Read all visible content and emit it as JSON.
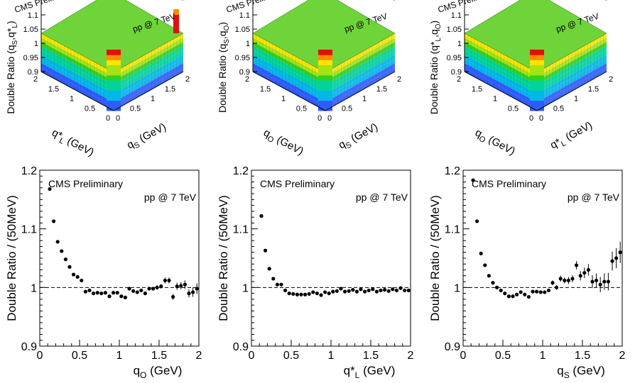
{
  "top_panels": [
    {
      "type": "lego3d",
      "z_label_main": "Double Ratio (q",
      "z_label_sub1": "S",
      "z_label_mid": ",q*",
      "z_label_sub2": "L",
      "z_label_end": ")",
      "x_axis_main": "q*",
      "x_axis_sub": "L",
      "x_axis_unit": "(GeV)",
      "y_axis_main": "q",
      "y_axis_sub": "S",
      "y_axis_unit": "(GeV)",
      "cms_label": "CMS Preliminary",
      "energy_label": "pp @ 7 TeV",
      "z_ticks": [
        "0.9",
        "0.95",
        "1",
        "1.05",
        "1.1"
      ],
      "left_ticks": [
        "2",
        "1.5",
        "1",
        "0.5",
        "0"
      ],
      "right_ticks": [
        "0",
        "0.5",
        "1",
        "1.5",
        "2"
      ],
      "spike": "corner"
    },
    {
      "type": "lego3d",
      "z_label_main": "Double Ratio (q",
      "z_label_sub1": "S",
      "z_label_mid": ",q",
      "z_label_sub2": "O",
      "z_label_end": ")",
      "x_axis_main": "q",
      "x_axis_sub": "O",
      "x_axis_unit": "(GeV)",
      "y_axis_main": "q",
      "y_axis_sub": "S",
      "y_axis_unit": "(GeV)",
      "cms_label": "CMS Preliminary",
      "energy_label": "pp @ 7 TeV",
      "z_ticks": [
        "0.9",
        "0.95",
        "1",
        "1.05",
        "1.1"
      ],
      "left_ticks": [
        "2",
        "1.5",
        "1",
        "0.5",
        "0"
      ],
      "right_ticks": [
        "0",
        "0.5",
        "1",
        "1.5",
        "2"
      ],
      "spike": "back"
    },
    {
      "type": "lego3d",
      "z_label_main": "Double Ratio (q*",
      "z_label_sub1": "L",
      "z_label_mid": ",q",
      "z_label_sub2": "O",
      "z_label_end": ")",
      "x_axis_main": "q",
      "x_axis_sub": "O",
      "x_axis_unit": "(GeV)",
      "y_axis_main": "q*",
      "y_axis_sub": "L",
      "y_axis_unit": "(GeV)",
      "cms_label": "CMS Preliminary",
      "energy_label": "pp @ 7 TeV",
      "z_ticks": [
        "0.9",
        "0.95",
        "1",
        "1.05",
        "1.1"
      ],
      "left_ticks": [
        "2",
        "1.5",
        "1",
        "0.5",
        "0"
      ],
      "right_ticks": [
        "0",
        "0.5",
        "1",
        "1.5",
        "2"
      ],
      "spike": "none"
    }
  ],
  "chart_data": [
    {
      "type": "scatter",
      "ylabel": "Double Ratio / (50MeV)",
      "xlabel_main": "q",
      "xlabel_sub": "O",
      "xlabel_unit": "(GeV)",
      "xlim": [
        0,
        2
      ],
      "ylim": [
        0.9,
        1.2
      ],
      "x_ticks": [
        "0",
        "0.5",
        "1",
        "1.5",
        "2"
      ],
      "y_ticks": [
        "0.9",
        "1",
        "1.1",
        "1.2"
      ],
      "reference_line": 1.0,
      "cms_label": "CMS Preliminary",
      "energy_label": "pp @ 7 TeV",
      "x": [
        0.125,
        0.175,
        0.225,
        0.275,
        0.325,
        0.375,
        0.425,
        0.475,
        0.525,
        0.575,
        0.625,
        0.675,
        0.725,
        0.775,
        0.825,
        0.875,
        0.925,
        0.975,
        1.025,
        1.075,
        1.125,
        1.175,
        1.225,
        1.275,
        1.325,
        1.375,
        1.425,
        1.475,
        1.525,
        1.575,
        1.625,
        1.675,
        1.725,
        1.775,
        1.825,
        1.875,
        1.925,
        1.975
      ],
      "y": [
        1.168,
        1.113,
        1.078,
        1.062,
        1.048,
        1.035,
        1.022,
        1.018,
        1.012,
        0.993,
        0.995,
        0.99,
        0.991,
        0.99,
        0.991,
        0.985,
        0.991,
        0.991,
        0.985,
        0.983,
        0.998,
        0.994,
        0.992,
        0.995,
        0.99,
        0.998,
        0.998,
        1.0,
        1.002,
        1.012,
        1.012,
        0.984,
        1.002,
        1.003,
        1.005,
        0.99,
        0.992,
        0.998
      ],
      "yerr": [
        0.002,
        0.002,
        0.002,
        0.002,
        0.002,
        0.002,
        0.002,
        0.002,
        0.002,
        0.002,
        0.002,
        0.002,
        0.002,
        0.002,
        0.002,
        0.002,
        0.002,
        0.002,
        0.002,
        0.002,
        0.002,
        0.002,
        0.002,
        0.002,
        0.003,
        0.003,
        0.003,
        0.004,
        0.004,
        0.005,
        0.005,
        0.005,
        0.006,
        0.006,
        0.007,
        0.007,
        0.008,
        0.009
      ]
    },
    {
      "type": "scatter",
      "ylabel": "Double Ratio / (50MeV)",
      "xlabel_main": "q*",
      "xlabel_sub": "L",
      "xlabel_unit": "(GeV)",
      "xlim": [
        0,
        2
      ],
      "ylim": [
        0.9,
        1.2
      ],
      "x_ticks": [
        "0",
        "0.5",
        "1",
        "1.5",
        "2"
      ],
      "y_ticks": [
        "0.9",
        "1",
        "1.1",
        "1.2"
      ],
      "reference_line": 1.0,
      "cms_label": "CMS Preliminary",
      "energy_label": "pp @ 7 TeV",
      "x": [
        0.125,
        0.175,
        0.225,
        0.275,
        0.325,
        0.375,
        0.425,
        0.475,
        0.525,
        0.575,
        0.625,
        0.675,
        0.725,
        0.775,
        0.825,
        0.875,
        0.925,
        0.975,
        1.025,
        1.075,
        1.125,
        1.175,
        1.225,
        1.275,
        1.325,
        1.375,
        1.425,
        1.475,
        1.525,
        1.575,
        1.625,
        1.675,
        1.725,
        1.775,
        1.825,
        1.875,
        1.925,
        1.975
      ],
      "y": [
        1.122,
        1.063,
        1.032,
        1.015,
        1.005,
        1.005,
        0.995,
        0.99,
        0.989,
        0.988,
        0.988,
        0.988,
        0.989,
        0.992,
        0.99,
        0.987,
        0.992,
        0.99,
        0.993,
        0.994,
        0.998,
        0.993,
        0.994,
        0.996,
        0.993,
        0.997,
        0.993,
        0.995,
        0.997,
        0.993,
        0.995,
        0.996,
        0.994,
        0.997,
        0.995,
        0.999,
        0.995,
        0.995
      ],
      "yerr": [
        0.002,
        0.002,
        0.002,
        0.002,
        0.002,
        0.002,
        0.002,
        0.002,
        0.002,
        0.002,
        0.002,
        0.002,
        0.002,
        0.002,
        0.002,
        0.002,
        0.002,
        0.002,
        0.002,
        0.002,
        0.002,
        0.002,
        0.002,
        0.002,
        0.002,
        0.002,
        0.002,
        0.002,
        0.002,
        0.002,
        0.002,
        0.002,
        0.002,
        0.002,
        0.002,
        0.002,
        0.002,
        0.002
      ]
    },
    {
      "type": "scatter",
      "ylabel": "Double Ratio / (50MeV)",
      "xlabel_main": "q",
      "xlabel_sub": "S",
      "xlabel_unit": "(GeV)",
      "xlim": [
        0,
        2
      ],
      "ylim": [
        0.9,
        1.2
      ],
      "x_ticks": [
        "0",
        "0.5",
        "1",
        "1.5",
        "2"
      ],
      "y_ticks": [
        "0.9",
        "1",
        "1.1",
        "1.2"
      ],
      "reference_line": 1.0,
      "cms_label": "CMS Preliminary",
      "energy_label": "pp @ 7 TeV",
      "x": [
        0.125,
        0.175,
        0.225,
        0.275,
        0.325,
        0.375,
        0.425,
        0.475,
        0.525,
        0.575,
        0.625,
        0.675,
        0.725,
        0.775,
        0.825,
        0.875,
        0.925,
        0.975,
        1.025,
        1.075,
        1.125,
        1.175,
        1.225,
        1.275,
        1.325,
        1.375,
        1.425,
        1.475,
        1.525,
        1.575,
        1.625,
        1.675,
        1.725,
        1.775,
        1.825,
        1.875,
        1.925,
        1.975
      ],
      "y": [
        1.183,
        1.113,
        1.058,
        1.038,
        1.02,
        1.008,
        1.0,
        0.995,
        0.99,
        0.985,
        0.985,
        0.988,
        0.992,
        0.988,
        0.984,
        0.993,
        0.993,
        0.992,
        0.992,
        0.995,
        1.008,
        1.0,
        1.015,
        1.012,
        1.012,
        1.015,
        1.038,
        1.02,
        1.025,
        1.03,
        1.01,
        1.012,
        1.005,
        1.01,
        1.01,
        1.045,
        1.05,
        1.06
      ],
      "yerr": [
        0.002,
        0.002,
        0.002,
        0.002,
        0.002,
        0.002,
        0.002,
        0.002,
        0.002,
        0.002,
        0.002,
        0.002,
        0.002,
        0.002,
        0.002,
        0.002,
        0.002,
        0.002,
        0.002,
        0.003,
        0.004,
        0.004,
        0.005,
        0.005,
        0.006,
        0.006,
        0.007,
        0.008,
        0.009,
        0.01,
        0.011,
        0.012,
        0.013,
        0.014,
        0.015,
        0.016,
        0.017,
        0.018
      ]
    }
  ]
}
